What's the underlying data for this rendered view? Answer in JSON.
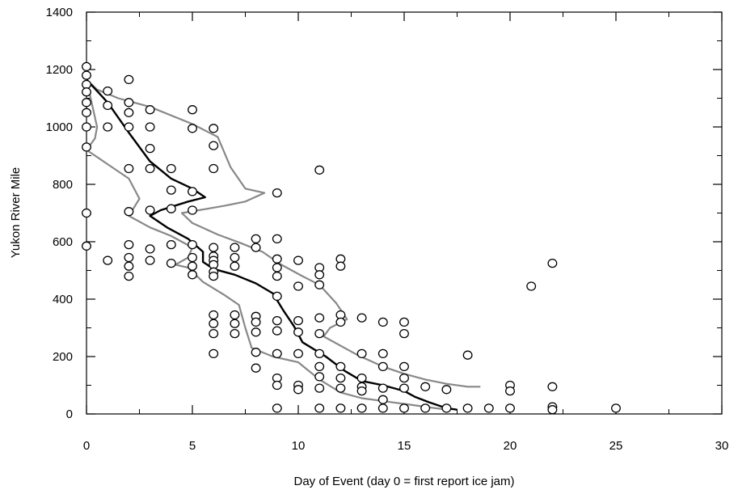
{
  "chart_data": {
    "type": "scatter",
    "xlabel": "Day of Event (day 0 = first report ice jam)",
    "ylabel": "Yukon River Mile",
    "xlim": [
      0,
      30
    ],
    "ylim": [
      0,
      1400
    ],
    "xticks": [
      0,
      5,
      10,
      15,
      20,
      25,
      30
    ],
    "yticks": [
      0,
      200,
      400,
      600,
      800,
      1000,
      1200,
      1400
    ],
    "grid": false,
    "legend": "none",
    "colors": {
      "points": "#000000",
      "mean_line": "#000000",
      "bound_lines": "#888888"
    },
    "points": [
      [
        0,
        1210
      ],
      [
        0,
        1180
      ],
      [
        0,
        1148
      ],
      [
        0,
        1122
      ],
      [
        0,
        1085
      ],
      [
        0,
        1050
      ],
      [
        0,
        1000
      ],
      [
        0,
        930
      ],
      [
        0,
        700
      ],
      [
        0,
        585
      ],
      [
        1,
        1125
      ],
      [
        1,
        1075
      ],
      [
        1,
        1000
      ],
      [
        1,
        535
      ],
      [
        2,
        1165
      ],
      [
        2,
        1085
      ],
      [
        2,
        1050
      ],
      [
        2,
        1000
      ],
      [
        2,
        855
      ],
      [
        2,
        705
      ],
      [
        2,
        590
      ],
      [
        2,
        545
      ],
      [
        2,
        515
      ],
      [
        2,
        480
      ],
      [
        3,
        1060
      ],
      [
        3,
        1000
      ],
      [
        3,
        925
      ],
      [
        3,
        855
      ],
      [
        3,
        710
      ],
      [
        3,
        575
      ],
      [
        3,
        535
      ],
      [
        4,
        855
      ],
      [
        4,
        780
      ],
      [
        4,
        715
      ],
      [
        4,
        590
      ],
      [
        4,
        525
      ],
      [
        5,
        1060
      ],
      [
        5,
        995
      ],
      [
        5,
        775
      ],
      [
        5,
        710
      ],
      [
        5,
        590
      ],
      [
        5,
        545
      ],
      [
        5,
        515
      ],
      [
        5,
        485
      ],
      [
        6,
        995
      ],
      [
        6,
        935
      ],
      [
        6,
        855
      ],
      [
        6,
        580
      ],
      [
        6,
        550
      ],
      [
        6,
        535
      ],
      [
        6,
        520
      ],
      [
        6,
        495
      ],
      [
        6,
        480
      ],
      [
        6,
        345
      ],
      [
        6,
        315
      ],
      [
        6,
        280
      ],
      [
        6,
        210
      ],
      [
        7,
        580
      ],
      [
        7,
        545
      ],
      [
        7,
        515
      ],
      [
        7,
        345
      ],
      [
        7,
        315
      ],
      [
        7,
        280
      ],
      [
        8,
        610
      ],
      [
        8,
        580
      ],
      [
        8,
        340
      ],
      [
        8,
        320
      ],
      [
        8,
        285
      ],
      [
        8,
        215
      ],
      [
        8,
        160
      ],
      [
        9,
        770
      ],
      [
        9,
        610
      ],
      [
        9,
        540
      ],
      [
        9,
        510
      ],
      [
        9,
        480
      ],
      [
        9,
        410
      ],
      [
        9,
        325
      ],
      [
        9,
        290
      ],
      [
        9,
        210
      ],
      [
        9,
        125
      ],
      [
        9,
        100
      ],
      [
        9,
        20
      ],
      [
        10,
        535
      ],
      [
        10,
        445
      ],
      [
        10,
        325
      ],
      [
        10,
        285
      ],
      [
        10,
        210
      ],
      [
        10,
        100
      ],
      [
        10,
        85
      ],
      [
        11,
        850
      ],
      [
        11,
        510
      ],
      [
        11,
        485
      ],
      [
        11,
        450
      ],
      [
        11,
        335
      ],
      [
        11,
        280
      ],
      [
        11,
        210
      ],
      [
        11,
        165
      ],
      [
        11,
        130
      ],
      [
        11,
        90
      ],
      [
        11,
        20
      ],
      [
        12,
        540
      ],
      [
        12,
        515
      ],
      [
        12,
        345
      ],
      [
        12,
        320
      ],
      [
        12,
        165
      ],
      [
        12,
        125
      ],
      [
        12,
        90
      ],
      [
        12,
        20
      ],
      [
        13,
        335
      ],
      [
        13,
        210
      ],
      [
        13,
        125
      ],
      [
        13,
        95
      ],
      [
        13,
        80
      ],
      [
        13,
        20
      ],
      [
        14,
        320
      ],
      [
        14,
        210
      ],
      [
        14,
        165
      ],
      [
        14,
        90
      ],
      [
        14,
        50
      ],
      [
        14,
        20
      ],
      [
        15,
        320
      ],
      [
        15,
        280
      ],
      [
        15,
        165
      ],
      [
        15,
        125
      ],
      [
        15,
        90
      ],
      [
        15,
        20
      ],
      [
        16,
        95
      ],
      [
        16,
        20
      ],
      [
        17,
        85
      ],
      [
        17,
        20
      ],
      [
        18,
        205
      ],
      [
        18,
        20
      ],
      [
        19,
        20
      ],
      [
        20,
        100
      ],
      [
        20,
        80
      ],
      [
        20,
        20
      ],
      [
        21,
        445
      ],
      [
        22,
        525
      ],
      [
        22,
        95
      ],
      [
        22,
        25
      ],
      [
        22,
        15
      ],
      [
        25,
        20
      ]
    ],
    "mean_line": [
      [
        0,
        1165
      ],
      [
        1,
        1085
      ],
      [
        2,
        980
      ],
      [
        3,
        880
      ],
      [
        4,
        820
      ],
      [
        5,
        785
      ],
      [
        5.6,
        755
      ],
      [
        4.8,
        740
      ],
      [
        3.5,
        710
      ],
      [
        3,
        690
      ],
      [
        3.8,
        650
      ],
      [
        4.8,
        610
      ],
      [
        5.5,
        565
      ],
      [
        5.5,
        530
      ],
      [
        6,
        505
      ],
      [
        7,
        485
      ],
      [
        8,
        455
      ],
      [
        8.8,
        420
      ],
      [
        9.3,
        360
      ],
      [
        9.8,
        305
      ],
      [
        10.2,
        250
      ],
      [
        11.3,
        200
      ],
      [
        12.2,
        150
      ],
      [
        13,
        115
      ],
      [
        14,
        100
      ],
      [
        15,
        80
      ],
      [
        15.5,
        60
      ],
      [
        16.2,
        40
      ],
      [
        17,
        20
      ],
      [
        17.5,
        15
      ]
    ],
    "upper_bound": [
      [
        0,
        1165
      ],
      [
        0.5,
        1130
      ],
      [
        1.5,
        1100
      ],
      [
        3,
        1070
      ],
      [
        5,
        1010
      ],
      [
        6.2,
        965
      ],
      [
        6.8,
        860
      ],
      [
        7.5,
        785
      ],
      [
        8.4,
        770
      ],
      [
        7.5,
        740
      ],
      [
        6.5,
        725
      ],
      [
        5.3,
        710
      ],
      [
        4.5,
        700
      ],
      [
        5,
        665
      ],
      [
        6.2,
        625
      ],
      [
        7.3,
        595
      ],
      [
        8.3,
        565
      ],
      [
        9.2,
        520
      ],
      [
        10.2,
        480
      ],
      [
        11,
        450
      ],
      [
        11.8,
        385
      ],
      [
        12.3,
        330
      ],
      [
        11.5,
        300
      ],
      [
        11.2,
        270
      ],
      [
        12.8,
        205
      ],
      [
        14,
        165
      ],
      [
        15,
        140
      ],
      [
        16,
        120
      ],
      [
        17,
        105
      ],
      [
        18,
        95
      ],
      [
        18.6,
        95
      ]
    ],
    "lower_bound": [
      [
        0,
        1165
      ],
      [
        0.5,
        1000
      ],
      [
        0.4,
        960
      ],
      [
        0,
        920
      ],
      [
        0.8,
        880
      ],
      [
        2,
        820
      ],
      [
        2.5,
        750
      ],
      [
        2,
        690
      ],
      [
        3,
        650
      ],
      [
        4,
        620
      ],
      [
        5,
        580
      ],
      [
        4.8,
        545
      ],
      [
        4.2,
        520
      ],
      [
        4.8,
        510
      ],
      [
        5.5,
        460
      ],
      [
        6.5,
        415
      ],
      [
        7.2,
        380
      ],
      [
        7.5,
        300
      ],
      [
        7.8,
        230
      ],
      [
        8.8,
        200
      ],
      [
        10,
        180
      ],
      [
        11,
        120
      ],
      [
        12,
        75
      ],
      [
        13,
        55
      ],
      [
        14.5,
        40
      ],
      [
        16,
        25
      ],
      [
        17,
        15
      ]
    ]
  }
}
